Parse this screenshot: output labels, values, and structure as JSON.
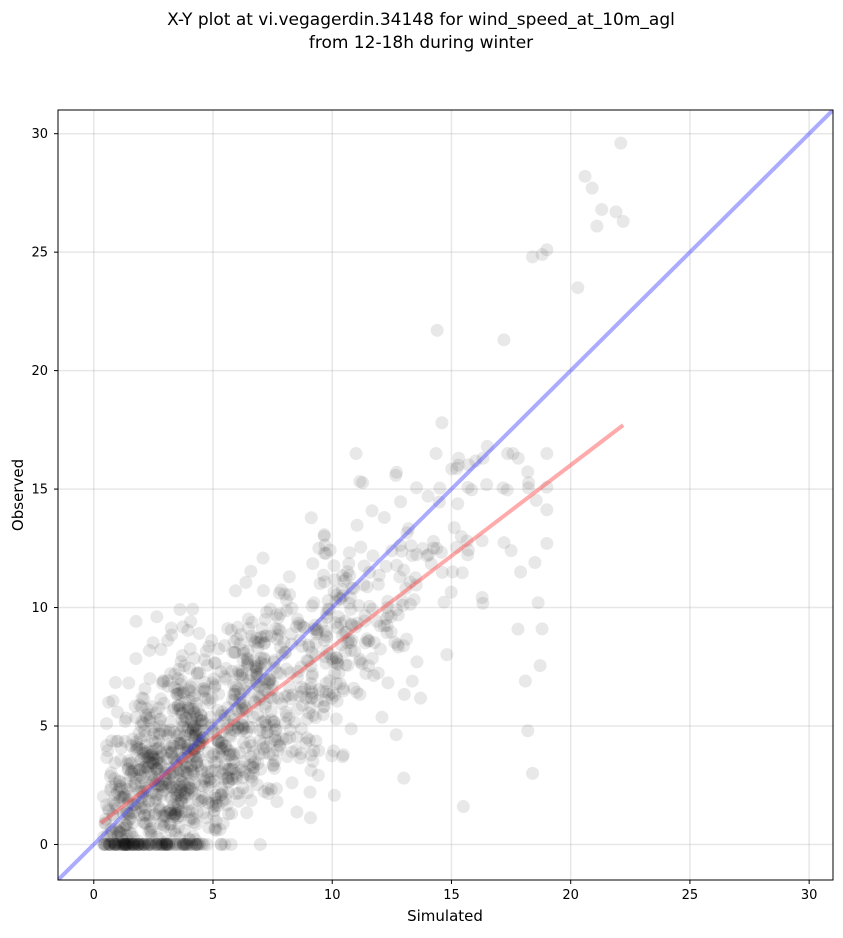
{
  "chart_data": {
    "type": "scatter",
    "title_line1": "X-Y plot at vi.vegagerdin.34148 for wind_speed_at_10m_agl",
    "title_line2": "from 12-18h during winter",
    "xlabel": "Simulated",
    "ylabel": "Observed",
    "xlim": [
      -1.5,
      31
    ],
    "ylim": [
      -1.5,
      31
    ],
    "x_ticks": [
      0,
      5,
      10,
      15,
      20,
      25,
      30
    ],
    "y_ticks": [
      0,
      5,
      10,
      15,
      20,
      25,
      30
    ],
    "tick_labels_x": [
      "0",
      "5",
      "10",
      "15",
      "20",
      "25",
      "30"
    ],
    "tick_labels_y": [
      "0",
      "5",
      "10",
      "15",
      "20",
      "25",
      "30"
    ],
    "grid": true,
    "colors": {
      "points": "#000000",
      "identity_line": "#4444ff",
      "fit_line": "#ff4444"
    },
    "lines": {
      "identity": {
        "x": [
          -1.5,
          31
        ],
        "y": [
          -1.5,
          31
        ]
      },
      "fit": {
        "x": [
          0.3,
          22.2
        ],
        "y": [
          0.9,
          17.7
        ]
      }
    },
    "outliers": {
      "x": [
        22.1,
        20.6,
        20.9,
        21.3,
        21.1,
        21.9,
        22.2,
        18.4,
        18.8,
        19.0,
        20.3,
        14.6,
        17.2,
        14.4,
        15.5,
        18.1,
        18.4,
        18.2,
        18.8,
        15.3,
        11.0,
        16.5,
        13.0,
        17.8,
        17.5,
        18.5,
        17.9
      ],
      "y": [
        29.6,
        28.2,
        27.7,
        26.8,
        26.1,
        26.7,
        26.3,
        24.8,
        24.9,
        25.1,
        23.5,
        17.8,
        21.3,
        21.7,
        1.6,
        6.9,
        3.0,
        4.8,
        9.1,
        16.3,
        16.5,
        16.8,
        2.8,
        16.3,
        12.4,
        11.9,
        11.5
      ]
    },
    "cloud": {
      "count": 1350,
      "x_range": [
        0.3,
        19.0
      ],
      "y_range": [
        0.0,
        16.5
      ]
    }
  }
}
